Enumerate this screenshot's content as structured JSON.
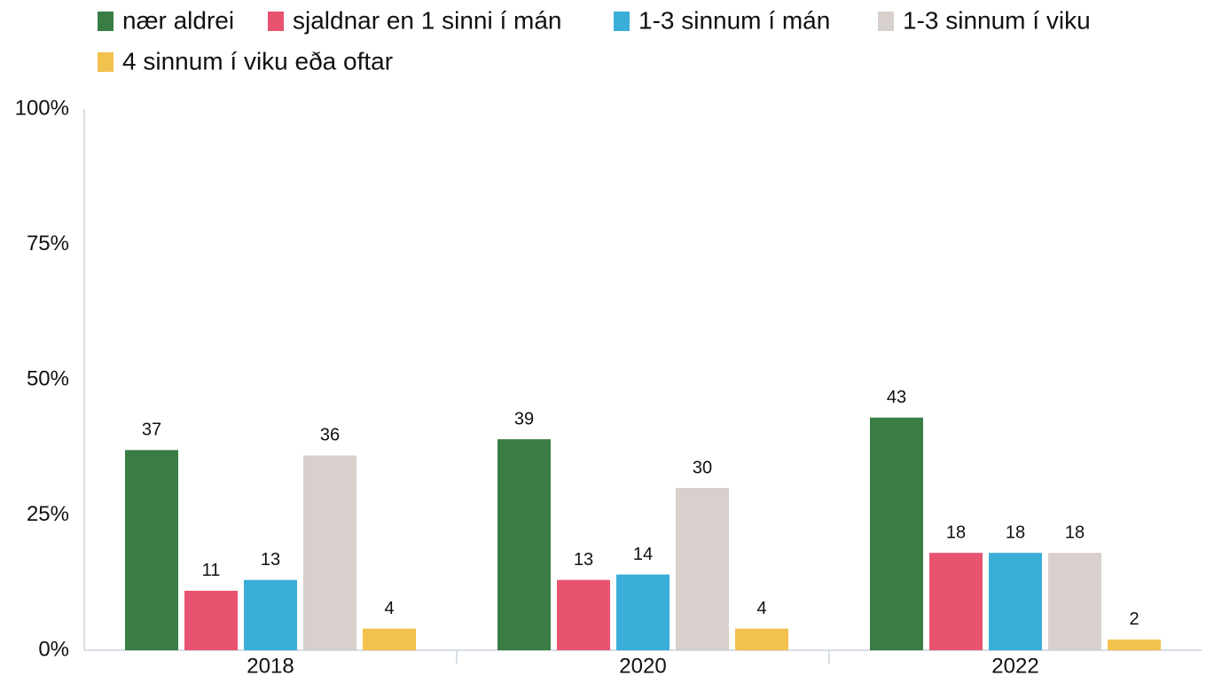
{
  "chart_data": {
    "type": "bar",
    "categories": [
      "2018",
      "2020",
      "2022"
    ],
    "series": [
      {
        "name": "nær aldrei",
        "color": "#3a7d44",
        "values": [
          37,
          39,
          43
        ]
      },
      {
        "name": "sjaldnar en 1 sinni í mán",
        "color": "#e85370",
        "values": [
          11,
          13,
          18
        ]
      },
      {
        "name": "1-3 sinnum í mán",
        "color": "#3aaed8",
        "values": [
          13,
          14,
          18
        ]
      },
      {
        "name": "1-3 sinnum í viku",
        "color": "#d8d0cc",
        "values": [
          36,
          30,
          18
        ]
      },
      {
        "name": "4 sinnum í viku eða oftar",
        "color": "#f2c14e",
        "values": [
          4,
          4,
          2
        ]
      }
    ],
    "ylim": [
      0,
      100
    ],
    "yticks": [
      {
        "value": 0,
        "label": "0%"
      },
      {
        "value": 25,
        "label": "25%"
      },
      {
        "value": 50,
        "label": "50%"
      },
      {
        "value": 75,
        "label": "75%"
      },
      {
        "value": 100,
        "label": "100%"
      }
    ],
    "grid": false,
    "legend": "top"
  }
}
